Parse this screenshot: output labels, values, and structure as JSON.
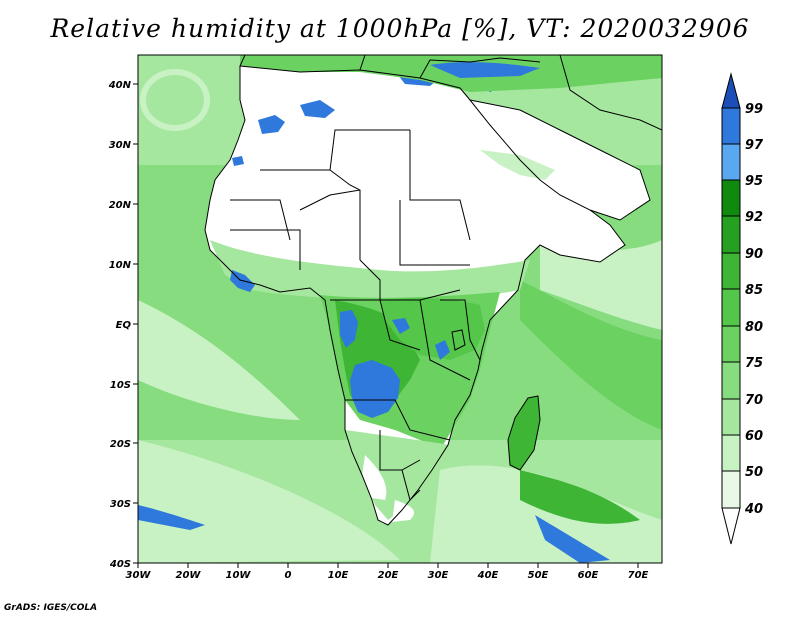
{
  "title": "Relative humidity at 1000hPa [%], VT: 2020032906",
  "footer": "GrADS: IGES/COLA",
  "colors": {
    "lt40": "#ffffff",
    "40_50": "#e8fae6",
    "50_60": "#c8f2c3",
    "60_70": "#a6e79f",
    "70_75": "#86dc7f",
    "75_80": "#6bd262",
    "80_85": "#54c74b",
    "85_90": "#3eb535",
    "90_92": "#26a020",
    "92_95": "#0f8a0f",
    "95_97": "#5aa8f0",
    "97_99": "#2f78dc",
    "gt99": "#1c4eb8"
  },
  "map": {
    "lon_ticks": [
      "30W",
      "20W",
      "10W",
      "0",
      "10E",
      "20E",
      "30E",
      "40E",
      "50E",
      "60E",
      "70E"
    ],
    "lat_ticks": [
      "40N",
      "30N",
      "20N",
      "10N",
      "EQ",
      "10S",
      "20S",
      "30S",
      "40S"
    ]
  },
  "colorbar": {
    "labels": [
      "99",
      "97",
      "95",
      "92",
      "90",
      "85",
      "80",
      "75",
      "70",
      "60",
      "50",
      "40"
    ]
  }
}
